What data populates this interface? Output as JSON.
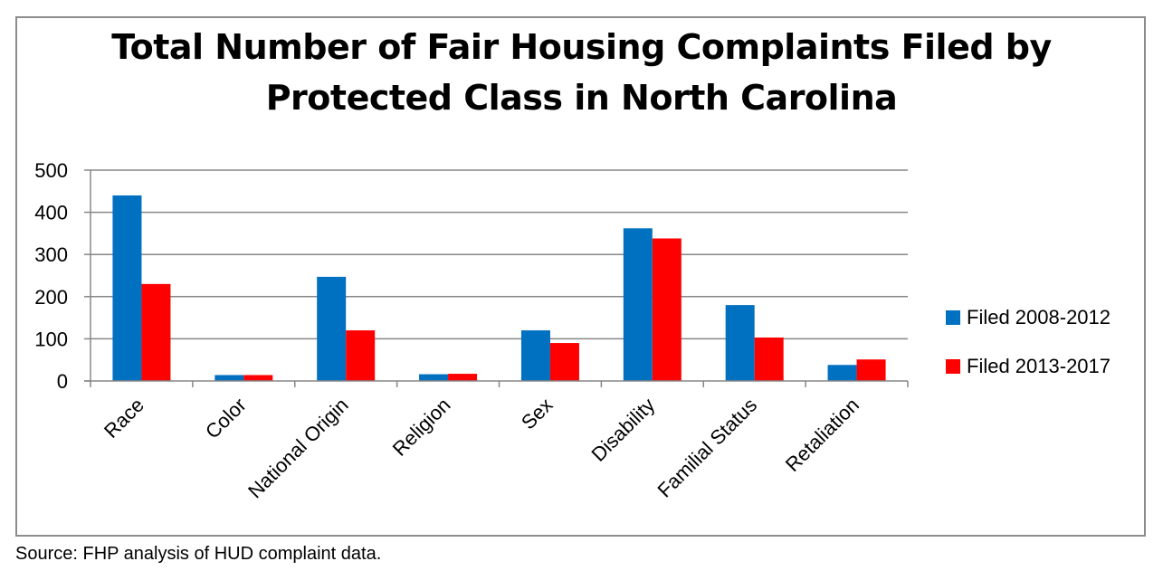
{
  "chart_data": {
    "type": "bar",
    "title_lines": [
      "Total Number of Fair Housing Complaints Filed by",
      "Protected Class in North Carolina"
    ],
    "categories": [
      "Race",
      "Color",
      "National Origin",
      "Religion",
      "Sex",
      "Disability",
      "Familial Status",
      "Retaliation"
    ],
    "series": [
      {
        "name": "Filed 2008-2012",
        "color": "#0070c0",
        "values": [
          440,
          14,
          247,
          16,
          120,
          362,
          180,
          38
        ]
      },
      {
        "name": "Filed 2013-2017",
        "color": "#ff0000",
        "values": [
          230,
          14,
          120,
          17,
          90,
          338,
          103,
          51
        ]
      }
    ],
    "yticks": [
      0,
      100,
      200,
      300,
      400,
      500
    ],
    "ylim": [
      0,
      500
    ],
    "xlabel": "",
    "ylabel": "",
    "grid": true,
    "legend_position": "right"
  },
  "source_note": "Source: FHP analysis of HUD complaint data."
}
